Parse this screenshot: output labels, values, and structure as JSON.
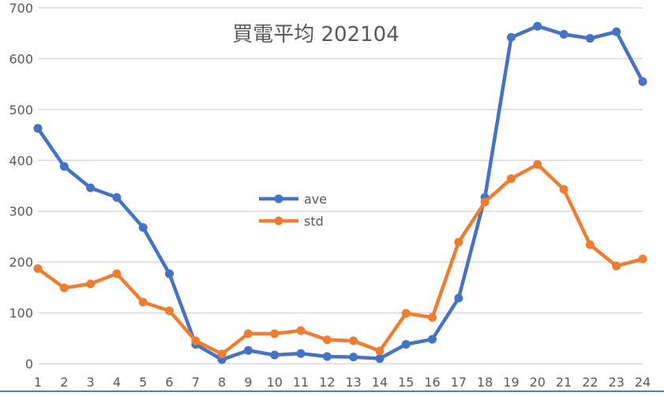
{
  "chart_data": {
    "type": "line",
    "title": "買電平均 202104",
    "xlabel": "",
    "ylabel": "",
    "categories": [
      "1",
      "2",
      "3",
      "4",
      "5",
      "6",
      "7",
      "8",
      "9",
      "10",
      "11",
      "12",
      "13",
      "14",
      "15",
      "16",
      "17",
      "18",
      "19",
      "20",
      "21",
      "22",
      "23",
      "24"
    ],
    "series": [
      {
        "name": "ave",
        "color": "#4472C4",
        "values": [
          463,
          388,
          346,
          327,
          268,
          177,
          38,
          8,
          26,
          17,
          20,
          14,
          13,
          10,
          38,
          48,
          129,
          327,
          642,
          664,
          648,
          640,
          653,
          555
        ]
      },
      {
        "name": "std",
        "color": "#ED7D31",
        "values": [
          187,
          149,
          157,
          177,
          121,
          104,
          45,
          19,
          59,
          59,
          65,
          47,
          45,
          25,
          99,
          91,
          239,
          318,
          364,
          392,
          343,
          234,
          192,
          206
        ]
      }
    ],
    "ylim": [
      0,
      700
    ],
    "yticks": [
      0,
      100,
      200,
      300,
      400,
      500,
      600,
      700
    ],
    "grid": true,
    "legend_position": "inside-center-left"
  },
  "colors": {
    "grid": "#d9d9d9",
    "axis_text": "#595959",
    "title_text": "#595959",
    "border": "#4a7cc7"
  }
}
